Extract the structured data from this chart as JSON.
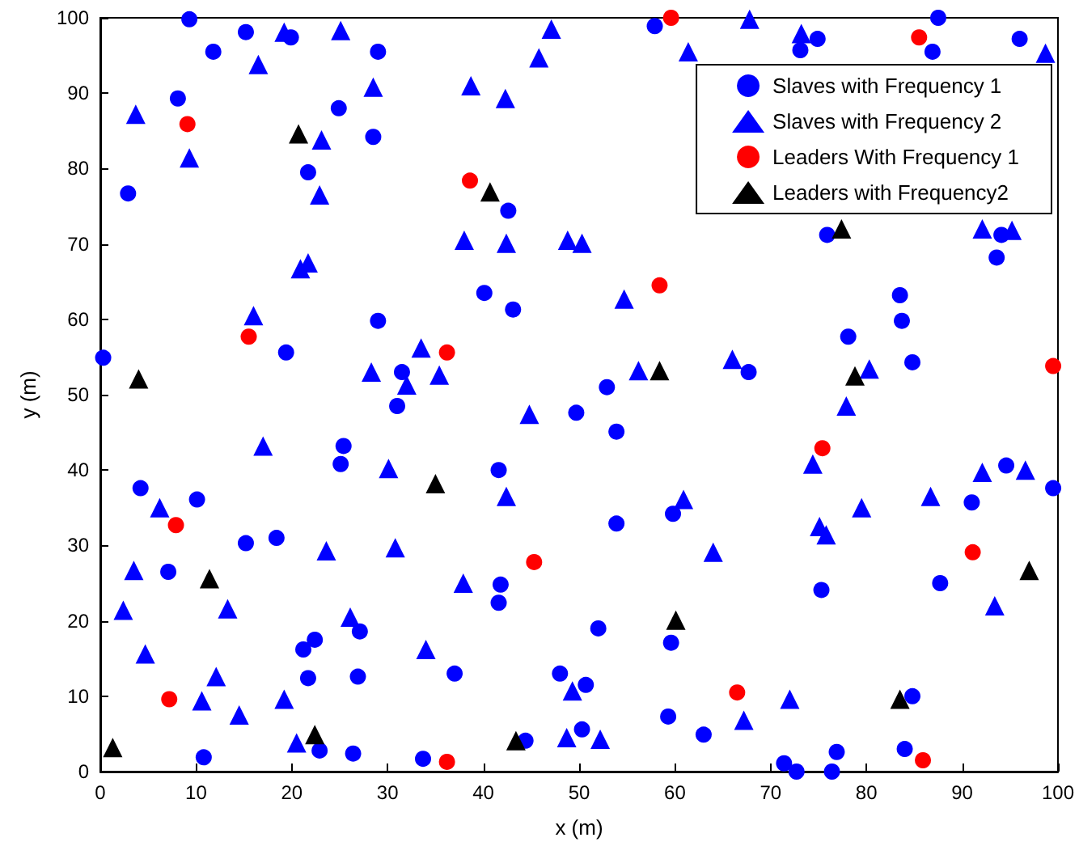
{
  "chart_data": {
    "type": "scatter",
    "xlabel": "x (m)",
    "ylabel": "y (m)",
    "xlim": [
      0,
      100
    ],
    "xticks": [
      0,
      10,
      20,
      30,
      40,
      50,
      60,
      70,
      80,
      90,
      100
    ],
    "ylim": [
      0,
      100
    ],
    "yticks": [
      0,
      10,
      20,
      30,
      40,
      50,
      60,
      70,
      80,
      90,
      100
    ],
    "grid": false,
    "legend": "top right",
    "series": [
      {
        "name": "Slaves with Frequency 1",
        "color": "#0000ff",
        "marker": "circle",
        "x": [
          9.3,
          15.2,
          11.8,
          19.9,
          29,
          8.1,
          24.9,
          28.5,
          21.7,
          2.9,
          42.6,
          40.1,
          43.1,
          29,
          19.4,
          0.3,
          31.5,
          31,
          57.9,
          87.5,
          74.9,
          73.1,
          86.9,
          96,
          75.9,
          94.1,
          93.6,
          83.5,
          83.7,
          78.1,
          84.8,
          67.7,
          52.9,
          49.7,
          25.4,
          25.1,
          4.2,
          10.1,
          41.6,
          15.2,
          18.4,
          7.1,
          41.8,
          41.6,
          22.4,
          21.2,
          27.1,
          21.7,
          26.9,
          37,
          48,
          50.7,
          50.3,
          10.8,
          22.9,
          26.4,
          33.7,
          44.4,
          53.9,
          53.9,
          59.8,
          94.6,
          99.5,
          91,
          87.7,
          75.3,
          52,
          59.6,
          84.8,
          59.3,
          63,
          76.9,
          71.4,
          72.7,
          76.4,
          84
        ],
        "values": [
          99.8,
          98.1,
          95.5,
          97.4,
          95.5,
          89.3,
          88,
          84.2,
          79.5,
          76.7,
          74.4,
          63.5,
          61.3,
          59.8,
          55.6,
          54.9,
          53,
          48.5,
          98.9,
          100,
          97.2,
          95.7,
          95.5,
          97.2,
          71.2,
          71.2,
          68.2,
          63.2,
          59.8,
          57.7,
          54.3,
          53,
          51,
          47.6,
          43.2,
          40.8,
          37.6,
          36.1,
          40,
          30.3,
          31,
          26.5,
          24.8,
          22.4,
          17.5,
          16.2,
          18.6,
          12.4,
          12.6,
          13,
          13,
          11.5,
          5.6,
          1.9,
          2.8,
          2.4,
          1.7,
          4.1,
          45.1,
          32.9,
          34.2,
          40.6,
          37.6,
          35.7,
          25,
          24.1,
          19,
          17.1,
          10,
          7.3,
          4.9,
          2.6,
          1.1,
          0,
          0,
          3
        ]
      },
      {
        "name": "Slaves with Frequency 2",
        "color": "#0000ff",
        "marker": "triangle",
        "x": [
          3.7,
          9.3,
          16.5,
          19.2,
          25.1,
          23.1,
          22.9,
          28.5,
          38.7,
          42.3,
          45.8,
          47.1,
          38,
          42.4,
          48.8,
          50.3,
          20.9,
          21.7,
          16,
          28.3,
          33.5,
          32,
          35.4,
          67.8,
          73.2,
          61.4,
          98.7,
          92.1,
          95.2,
          54.7,
          56.2,
          66,
          80.3,
          44.8,
          17,
          30.1,
          42.4,
          6.2,
          23.6,
          30.8,
          3.5,
          37.9,
          2.4,
          13.3,
          26.1,
          34,
          4.7,
          12.1,
          10.6,
          19.2,
          14.5,
          20.5,
          48.7,
          49.3,
          77.9,
          74.4,
          60.9,
          75.1,
          75.8,
          79.5,
          86.7,
          92.1,
          96.6,
          64,
          93.4,
          72,
          67.2,
          52.2
        ],
        "values": [
          87.2,
          81.4,
          93.8,
          98.1,
          98.3,
          83.8,
          76.5,
          90.8,
          91,
          89.3,
          94.7,
          98.5,
          70.5,
          70.1,
          70.5,
          70.1,
          66.7,
          67.5,
          60.5,
          53,
          56.2,
          51.3,
          52.6,
          99.8,
          97.9,
          95.5,
          95.3,
          72,
          71.8,
          62.7,
          53.2,
          54.7,
          53.4,
          47.4,
          43.2,
          40.2,
          36.5,
          35,
          29.3,
          29.7,
          26.7,
          25,
          21.4,
          21.6,
          20.5,
          16.2,
          15.6,
          12.6,
          9.4,
          9.6,
          7.5,
          3.8,
          4.5,
          10.7,
          48.5,
          40.8,
          36.1,
          32.5,
          31.4,
          35,
          36.5,
          39.7,
          40,
          29.1,
          22,
          9.6,
          6.8,
          4.3
        ]
      },
      {
        "name": "Leaders With Frequency 1",
        "color": "#ff0000",
        "marker": "circle",
        "x": [
          9.1,
          38.6,
          15.5,
          36.2,
          59.6,
          85.5,
          58.4,
          99.5,
          7.9,
          7.2,
          45.3,
          36.2,
          75.4,
          91.1,
          66.5,
          85.9
        ],
        "values": [
          85.9,
          78.4,
          57.7,
          55.6,
          100,
          97.4,
          64.5,
          53.8,
          32.7,
          9.6,
          27.8,
          1.3,
          42.9,
          29.1,
          10.5,
          1.5
        ]
      },
      {
        "name": "Leaders with Frequency2",
        "color": "#000000",
        "marker": "triangle",
        "x": [
          20.7,
          40.7,
          4,
          77.4,
          58.4,
          78.8,
          11.4,
          35,
          22.4,
          1.3,
          43.4,
          60.1,
          83.5,
          97
        ],
        "values": [
          84.6,
          76.9,
          52.1,
          72,
          53.2,
          52.5,
          25.6,
          38.2,
          4.9,
          3.2,
          4.1,
          20.1,
          9.6,
          26.7
        ]
      }
    ]
  }
}
